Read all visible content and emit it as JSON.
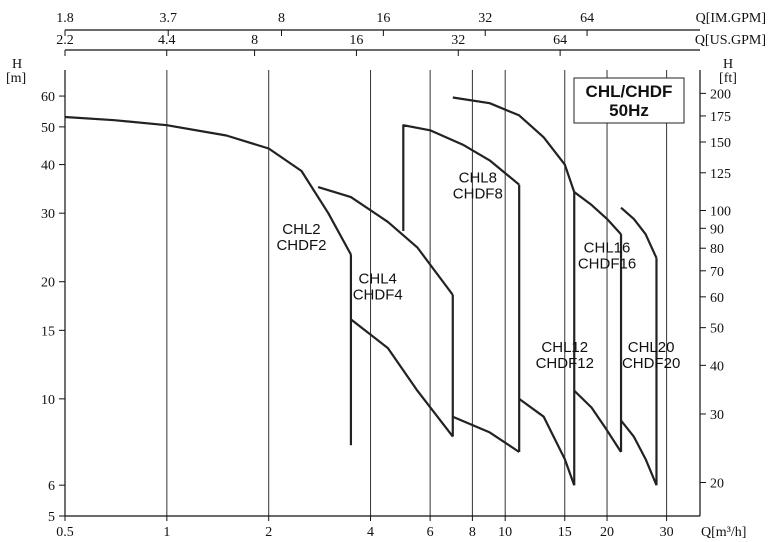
{
  "chart_data": {
    "type": "line",
    "title": "CHL/CHDF",
    "subtitle": "50Hz",
    "xlabel": "Q[m³/h]",
    "ylabel_left": "H [m]",
    "ylabel_right": "H [ft]",
    "x_scale": "log",
    "y_scale": "log",
    "xlim": [
      0.5,
      34
    ],
    "ylim": [
      5,
      70
    ],
    "grid": "vertical major lines",
    "x_ticks": [
      0.5,
      1,
      2,
      4,
      6,
      8,
      10,
      15,
      20,
      30
    ],
    "y_ticks_left": [
      5,
      6,
      10,
      15,
      20,
      30,
      40,
      50,
      60
    ],
    "y_ticks_right": [
      20,
      30,
      40,
      50,
      60,
      70,
      80,
      90,
      100,
      125,
      150,
      175,
      200
    ],
    "top_axis_us_gpm": {
      "label": "Q[US.GPM]",
      "ticks": [
        2.2,
        4.4,
        8,
        16,
        32,
        64
      ]
    },
    "top_axis_im_gpm": {
      "label": "Q[IM.GPM]",
      "ticks": [
        1.8,
        3.7,
        8,
        16,
        32,
        64
      ]
    },
    "series": [
      {
        "name": "CHL2 CHDF2",
        "label_lines": [
          "CHL2",
          "CHDF2"
        ],
        "label_at": [
          2.5,
          26.5
        ],
        "points": [
          [
            0.5,
            53
          ],
          [
            0.7,
            52
          ],
          [
            1.0,
            50.5
          ],
          [
            1.5,
            47.5
          ],
          [
            2.0,
            44
          ],
          [
            2.5,
            38.5
          ],
          [
            3.0,
            30
          ],
          [
            3.5,
            23.5
          ]
        ],
        "low_cut": [
          3.5,
          7.6
        ]
      },
      {
        "name": "CHL4 CHDF4",
        "label_lines": [
          "CHL4",
          "CHDF4"
        ],
        "label_at": [
          4.2,
          19.8
        ],
        "points": [
          [
            2.8,
            35
          ],
          [
            3.5,
            33
          ],
          [
            4.5,
            28.5
          ],
          [
            5.5,
            24.5
          ],
          [
            7.0,
            18.5
          ]
        ],
        "low_points": [
          [
            3.5,
            16
          ],
          [
            4.5,
            13.5
          ],
          [
            5.5,
            10.5
          ],
          [
            7.0,
            8
          ]
        ]
      },
      {
        "name": "CHL8 CHDF8",
        "label_lines": [
          "CHL8",
          "CHDF8"
        ],
        "label_at": [
          8.3,
          36
        ],
        "points": [
          [
            5.0,
            27
          ],
          [
            5.0,
            50.5
          ],
          [
            6.0,
            49
          ],
          [
            7.5,
            45
          ],
          [
            9.0,
            41
          ],
          [
            11.0,
            35.5
          ]
        ],
        "low_points": [
          [
            7.0,
            9
          ],
          [
            9.0,
            8.2
          ],
          [
            11.0,
            7.3
          ]
        ]
      },
      {
        "name": "CHL12 CHDF12",
        "label_lines": [
          "CHL12",
          "CHDF12"
        ],
        "label_at": [
          15,
          13.2
        ],
        "points": [
          [
            7.0,
            59.5
          ],
          [
            9.0,
            57.5
          ],
          [
            11.0,
            53.5
          ],
          [
            13.0,
            47
          ],
          [
            15.0,
            40
          ],
          [
            16.0,
            34
          ]
        ],
        "low_points": [
          [
            11.0,
            10
          ],
          [
            13.0,
            9
          ],
          [
            15.0,
            7
          ],
          [
            16.0,
            6
          ]
        ]
      },
      {
        "name": "CHL16 CHDF16",
        "label_lines": [
          "CHL16",
          "CHDF16"
        ],
        "label_at": [
          20,
          23.8
        ],
        "points": [
          [
            16.0,
            34
          ],
          [
            18.0,
            31.5
          ],
          [
            20.0,
            29
          ],
          [
            22.0,
            26.5
          ]
        ],
        "low_points": [
          [
            16.0,
            10.5
          ],
          [
            18.0,
            9.5
          ],
          [
            20.0,
            8.3
          ],
          [
            22.0,
            7.3
          ]
        ]
      },
      {
        "name": "CHL20 CHDF20",
        "label_lines": [
          "CHL20",
          "CHDF20"
        ],
        "label_at": [
          27,
          13.2
        ],
        "points": [
          [
            22.0,
            31
          ],
          [
            24.0,
            29
          ],
          [
            26.0,
            26.5
          ],
          [
            28.0,
            23
          ]
        ],
        "low_points": [
          [
            22.0,
            8.8
          ],
          [
            24.0,
            8
          ],
          [
            26.0,
            7
          ],
          [
            28.0,
            6
          ]
        ]
      }
    ]
  }
}
